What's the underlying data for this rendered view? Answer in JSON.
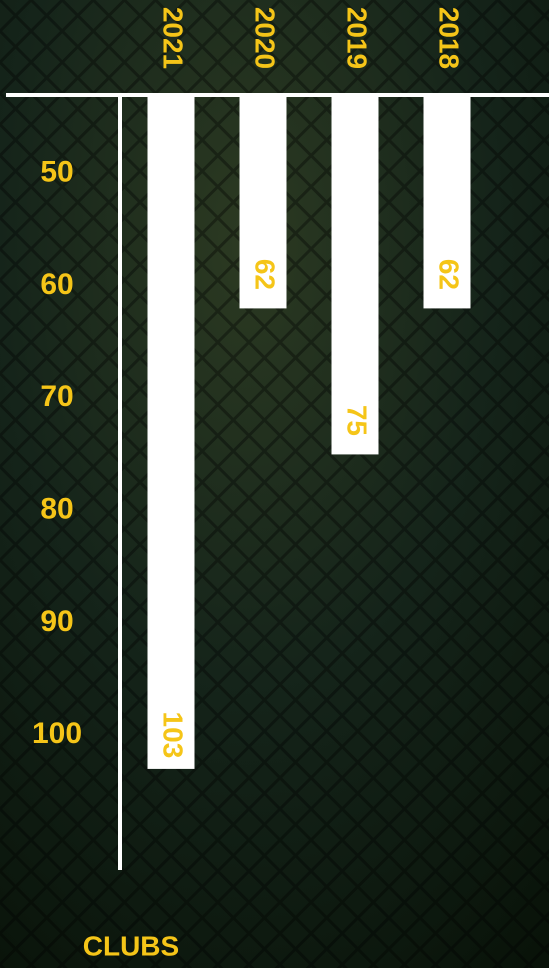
{
  "chart_data": {
    "type": "bar",
    "categories": [
      "2021",
      "2020",
      "2019",
      "2018"
    ],
    "values": [
      103,
      62,
      75,
      62
    ],
    "color": "#ffffff",
    "label_color": "#f5c518",
    "ylim": [
      43,
      112
    ],
    "yticks": [
      50,
      60,
      70,
      80,
      90,
      100
    ],
    "y_label": "CLUBS",
    "y_inverted": true
  }
}
